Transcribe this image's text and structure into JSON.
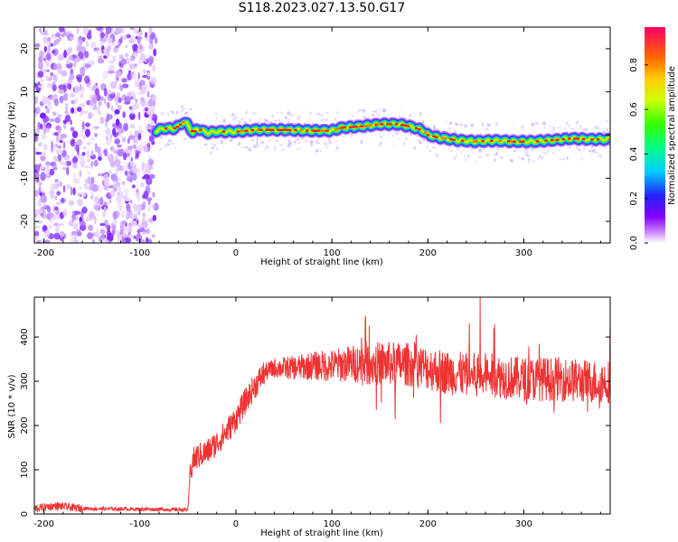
{
  "title": "S118.2023.027.13.50.G17",
  "chart_data": [
    {
      "type": "heatmap",
      "xlabel": "Height of straight line (km)",
      "ylabel": "Frequency (Hz)",
      "xlim": [
        -210,
        390
      ],
      "ylim": [
        -25,
        25
      ],
      "xticks": [
        -200,
        -100,
        0,
        100,
        200,
        300
      ],
      "yticks": [
        -20,
        -10,
        0,
        10,
        20
      ],
      "noise_region_x": [
        -210,
        -83
      ],
      "colorbar": {
        "label": "Normalized spectral amplitude",
        "range": [
          0,
          0.97
        ],
        "ticks": [
          "0.0",
          "0.2",
          "0.4",
          "0.6",
          "0.8"
        ],
        "colormap": "hsv-rainbow"
      },
      "ridge_frequency": {
        "x": [
          -83,
          -75,
          -65,
          -60,
          -55,
          -50,
          -45,
          -40,
          -30,
          -20,
          0,
          20,
          50,
          80,
          100,
          110,
          130,
          150,
          170,
          185,
          195,
          200,
          210,
          230,
          250,
          270,
          290,
          310,
          330,
          350,
          370,
          390
        ],
        "y": [
          1,
          1.5,
          1.5,
          2,
          3,
          2.5,
          0.5,
          1.5,
          0.5,
          0.8,
          0.8,
          1.2,
          1.2,
          1,
          1,
          1.7,
          2,
          2.5,
          2.5,
          1.8,
          1,
          0,
          -0.5,
          -1.2,
          -1.5,
          -1.3,
          -1.5,
          -1.5,
          -1.2,
          -0.8,
          -1,
          -1
        ]
      }
    },
    {
      "type": "line",
      "series": [
        {
          "color": "#ee3333"
        }
      ],
      "xlabel": "Height of straight line (km)",
      "ylabel": "SNR (10 * v/v)",
      "xlim": [
        -210,
        390
      ],
      "ylim": [
        0,
        490
      ],
      "xticks": [
        -200,
        -100,
        0,
        100,
        200,
        300
      ],
      "yticks": [
        0,
        100,
        200,
        300,
        400
      ],
      "x": [
        -210,
        -200,
        -190,
        -180,
        -170,
        -150,
        -100,
        -60,
        -50,
        -48,
        -45,
        -40,
        -30,
        -20,
        -10,
        0,
        10,
        20,
        30,
        40,
        60,
        80,
        100,
        120,
        140,
        160,
        180,
        200,
        220,
        240,
        260,
        280,
        300,
        320,
        340,
        360,
        380,
        390
      ],
      "y": [
        12,
        15,
        18,
        17,
        14,
        12,
        11,
        10,
        10,
        80,
        120,
        130,
        140,
        160,
        185,
        215,
        255,
        290,
        320,
        330,
        330,
        335,
        335,
        340,
        340,
        340,
        338,
        330,
        320,
        315,
        315,
        310,
        305,
        305,
        305,
        300,
        300,
        300
      ]
    }
  ]
}
